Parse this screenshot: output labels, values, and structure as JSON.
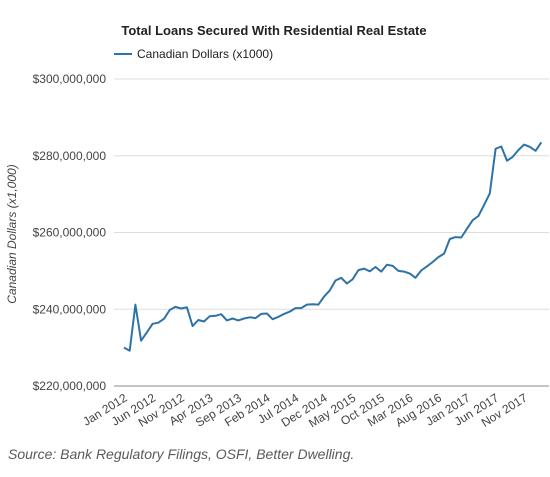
{
  "chart_data": {
    "type": "line",
    "title": "Total Loans Secured With Residential Real Estate",
    "ylabel": "Canadian Dollars (x1,000)",
    "xlabel": "",
    "ylim": [
      220000000,
      300000000
    ],
    "yticks": [
      220000000,
      240000000,
      260000000,
      280000000,
      300000000
    ],
    "ytick_labels": [
      "$220,000,000",
      "$240,000,000",
      "$260,000,000",
      "$280,000,000",
      "$300,000,000"
    ],
    "xlim": [
      "2012-01",
      "2018-03"
    ],
    "xtick_labels": [
      {
        "label": "Jan 2012",
        "x": "2012-01"
      },
      {
        "label": "Jun 2012",
        "x": "2012-06"
      },
      {
        "label": "Nov 2012",
        "x": "2012-11"
      },
      {
        "label": "Apr 2013",
        "x": "2013-04"
      },
      {
        "label": "Sep 2013",
        "x": "2013-09"
      },
      {
        "label": "Feb 2014",
        "x": "2014-02"
      },
      {
        "label": "Jul 2014",
        "x": "2014-07"
      },
      {
        "label": "Dec 2014",
        "x": "2014-12"
      },
      {
        "label": "May 2015",
        "x": "2015-05"
      },
      {
        "label": "Oct 2015",
        "x": "2015-10"
      },
      {
        "label": "Mar 2016",
        "x": "2016-03"
      },
      {
        "label": "Aug 2016",
        "x": "2016-08"
      },
      {
        "label": "Jan 2017",
        "x": "2017-01"
      },
      {
        "label": "Jun 2017",
        "x": "2017-06"
      },
      {
        "label": "Nov 2017",
        "x": "2017-11"
      }
    ],
    "grid": true,
    "legend": "top-left",
    "series": [
      {
        "name": "Canadian Dollars (x1000)",
        "color": "#2e73a8",
        "points": [
          {
            "x": "2012-01",
            "y": 230000000
          },
          {
            "x": "2012-02",
            "y": 229200000
          },
          {
            "x": "2012-03",
            "y": 241200000
          },
          {
            "x": "2012-04",
            "y": 231800000
          },
          {
            "x": "2012-05",
            "y": 234000000
          },
          {
            "x": "2012-06",
            "y": 236200000
          },
          {
            "x": "2012-07",
            "y": 236500000
          },
          {
            "x": "2012-08",
            "y": 237500000
          },
          {
            "x": "2012-09",
            "y": 239800000
          },
          {
            "x": "2012-10",
            "y": 240600000
          },
          {
            "x": "2012-11",
            "y": 240200000
          },
          {
            "x": "2012-12",
            "y": 240500000
          },
          {
            "x": "2013-01",
            "y": 235600000
          },
          {
            "x": "2013-02",
            "y": 237200000
          },
          {
            "x": "2013-03",
            "y": 236800000
          },
          {
            "x": "2013-04",
            "y": 238200000
          },
          {
            "x": "2013-05",
            "y": 238300000
          },
          {
            "x": "2013-06",
            "y": 238700000
          },
          {
            "x": "2013-07",
            "y": 237100000
          },
          {
            "x": "2013-08",
            "y": 237600000
          },
          {
            "x": "2013-09",
            "y": 237100000
          },
          {
            "x": "2013-10",
            "y": 237600000
          },
          {
            "x": "2013-11",
            "y": 237900000
          },
          {
            "x": "2013-12",
            "y": 237700000
          },
          {
            "x": "2014-01",
            "y": 238800000
          },
          {
            "x": "2014-02",
            "y": 238900000
          },
          {
            "x": "2014-03",
            "y": 237400000
          },
          {
            "x": "2014-04",
            "y": 238000000
          },
          {
            "x": "2014-05",
            "y": 238800000
          },
          {
            "x": "2014-06",
            "y": 239400000
          },
          {
            "x": "2014-07",
            "y": 240300000
          },
          {
            "x": "2014-08",
            "y": 240300000
          },
          {
            "x": "2014-09",
            "y": 241200000
          },
          {
            "x": "2014-10",
            "y": 241300000
          },
          {
            "x": "2014-11",
            "y": 241200000
          },
          {
            "x": "2014-12",
            "y": 243300000
          },
          {
            "x": "2015-01",
            "y": 244900000
          },
          {
            "x": "2015-02",
            "y": 247500000
          },
          {
            "x": "2015-03",
            "y": 248200000
          },
          {
            "x": "2015-04",
            "y": 246700000
          },
          {
            "x": "2015-05",
            "y": 247800000
          },
          {
            "x": "2015-06",
            "y": 250200000
          },
          {
            "x": "2015-07",
            "y": 250600000
          },
          {
            "x": "2015-08",
            "y": 249900000
          },
          {
            "x": "2015-09",
            "y": 251000000
          },
          {
            "x": "2015-10",
            "y": 249800000
          },
          {
            "x": "2015-11",
            "y": 251600000
          },
          {
            "x": "2015-12",
            "y": 251300000
          },
          {
            "x": "2016-01",
            "y": 250000000
          },
          {
            "x": "2016-02",
            "y": 249800000
          },
          {
            "x": "2016-03",
            "y": 249300000
          },
          {
            "x": "2016-04",
            "y": 248200000
          },
          {
            "x": "2016-05",
            "y": 250100000
          },
          {
            "x": "2016-06",
            "y": 251200000
          },
          {
            "x": "2016-07",
            "y": 252300000
          },
          {
            "x": "2016-08",
            "y": 253600000
          },
          {
            "x": "2016-09",
            "y": 254500000
          },
          {
            "x": "2016-10",
            "y": 258300000
          },
          {
            "x": "2016-11",
            "y": 258800000
          },
          {
            "x": "2016-12",
            "y": 258700000
          },
          {
            "x": "2017-01",
            "y": 261000000
          },
          {
            "x": "2017-02",
            "y": 263200000
          },
          {
            "x": "2017-03",
            "y": 264300000
          },
          {
            "x": "2017-04",
            "y": 267200000
          },
          {
            "x": "2017-05",
            "y": 270200000
          },
          {
            "x": "2017-06",
            "y": 281800000
          },
          {
            "x": "2017-07",
            "y": 282400000
          },
          {
            "x": "2017-08",
            "y": 278700000
          },
          {
            "x": "2017-09",
            "y": 279700000
          },
          {
            "x": "2017-10",
            "y": 281500000
          },
          {
            "x": "2017-11",
            "y": 282900000
          },
          {
            "x": "2017-12",
            "y": 282300000
          },
          {
            "x": "2018-01",
            "y": 281300000
          },
          {
            "x": "2018-02",
            "y": 283500000
          }
        ]
      }
    ]
  },
  "source_note": "Source: Bank Regulatory Filings, OSFI, Better Dwelling."
}
